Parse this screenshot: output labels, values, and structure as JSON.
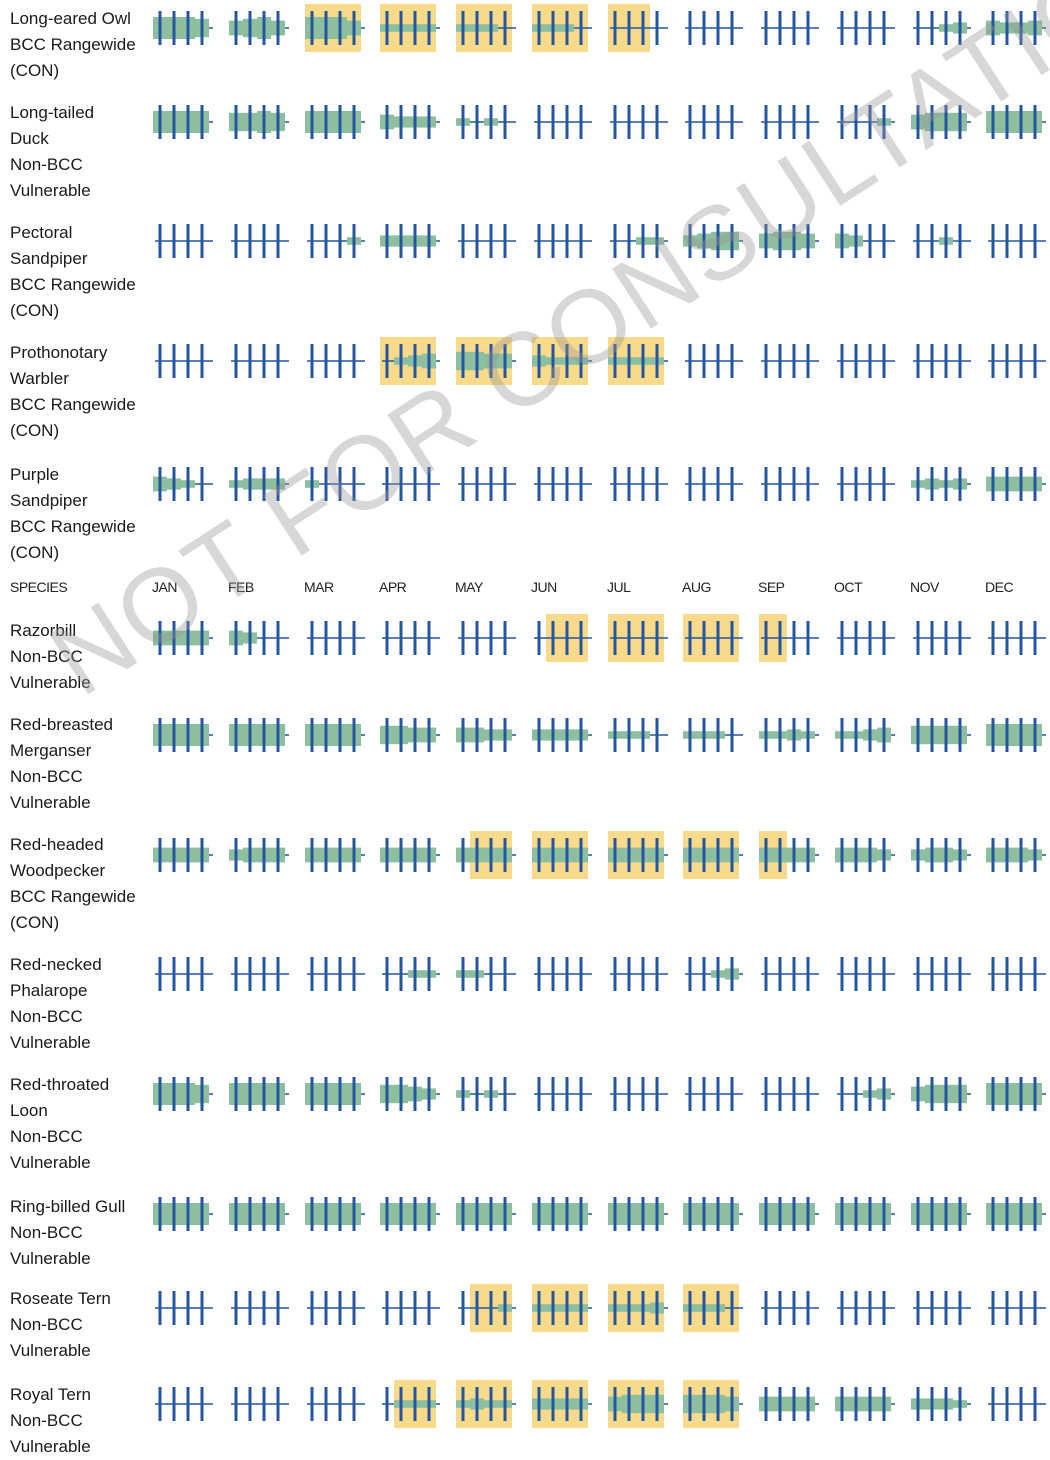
{
  "colors": {
    "breeding": "#f9da8a",
    "probability": "#8dbf9f",
    "survey": "#2456a0",
    "no_data": "#2456a0",
    "watermark": "#9a9a9a"
  },
  "header": {
    "species_label": "SPECIES",
    "months": [
      "JAN",
      "FEB",
      "MAR",
      "APR",
      "MAY",
      "JUN",
      "JUL",
      "AUG",
      "SEP",
      "OCT",
      "NOV",
      "DEC"
    ]
  },
  "watermark_text": "NOT FOR CONSULTATION",
  "chart_data": {
    "type": "heatmap",
    "description_note": "Weekly probability-of-presence bars; 4 weeks per month; breeding season highlighted",
    "species": [
      {
        "name_lines": [
          "Long-eared Owl",
          "BCC Rangewide",
          "(CON)"
        ],
        "prob": [
          5,
          5,
          5,
          4,
          3,
          4,
          5,
          3,
          5,
          5,
          5,
          3,
          1,
          1,
          1,
          1,
          1,
          1,
          1,
          0,
          1,
          1,
          1,
          0,
          0,
          0,
          0,
          0,
          0,
          0,
          0,
          0,
          0,
          0,
          0,
          0,
          0,
          0,
          0,
          0,
          0,
          0,
          1,
          2,
          3,
          2,
          2,
          3
        ],
        "breeding": [
          0,
          0,
          0,
          0,
          0,
          0,
          0,
          0,
          1,
          1,
          1,
          1,
          1,
          1,
          1,
          1,
          1,
          1,
          1,
          1,
          1,
          1,
          1,
          1,
          1,
          1,
          1,
          0,
          0,
          0,
          0,
          0,
          0,
          0,
          0,
          0,
          0,
          0,
          0,
          0,
          0,
          0,
          0,
          0,
          0,
          0,
          0,
          0
        ]
      },
      {
        "name_lines": [
          "Long-tailed",
          "Duck",
          "Non-BCC",
          "Vulnerable"
        ],
        "prob": [
          5,
          5,
          5,
          5,
          4,
          4,
          5,
          4,
          5,
          5,
          5,
          5,
          3,
          2,
          2,
          2,
          1,
          0,
          1,
          0,
          0,
          0,
          0,
          0,
          0,
          0,
          0,
          0,
          0,
          0,
          0,
          0,
          0,
          0,
          0,
          0,
          0,
          0,
          0,
          1,
          3,
          4,
          4,
          4,
          5,
          5,
          5,
          5
        ],
        "breeding": [
          0,
          0,
          0,
          0,
          0,
          0,
          0,
          0,
          0,
          0,
          0,
          0,
          0,
          0,
          0,
          0,
          0,
          0,
          0,
          0,
          0,
          0,
          0,
          0,
          0,
          0,
          0,
          0,
          0,
          0,
          0,
          0,
          0,
          0,
          0,
          0,
          0,
          0,
          0,
          0,
          0,
          0,
          0,
          0,
          0,
          0,
          0,
          0
        ]
      },
      {
        "name_lines": [
          "Pectoral",
          "Sandpiper",
          "BCC Rangewide",
          "(CON)"
        ],
        "prob": [
          0,
          0,
          0,
          0,
          0,
          0,
          0,
          0,
          0,
          0,
          0,
          1,
          2,
          2,
          2,
          2,
          0,
          0,
          0,
          0,
          0,
          0,
          0,
          0,
          0,
          0,
          1,
          1,
          2,
          3,
          4,
          4,
          3,
          4,
          4,
          3,
          3,
          2,
          0,
          0,
          0,
          0,
          1,
          0,
          0,
          0,
          0,
          0
        ],
        "breeding": [
          0,
          0,
          0,
          0,
          0,
          0,
          0,
          0,
          0,
          0,
          0,
          0,
          0,
          0,
          0,
          0,
          0,
          0,
          0,
          0,
          0,
          0,
          0,
          0,
          0,
          0,
          0,
          0,
          0,
          0,
          0,
          0,
          0,
          0,
          0,
          0,
          0,
          0,
          0,
          0,
          0,
          0,
          0,
          0,
          0,
          0,
          0,
          0
        ]
      },
      {
        "name_lines": [
          "Prothonotary",
          "Warbler",
          "BCC Rangewide",
          "(CON)"
        ],
        "prob": [
          0,
          0,
          0,
          0,
          0,
          0,
          0,
          0,
          0,
          0,
          0,
          0,
          0,
          1,
          2,
          3,
          4,
          4,
          3,
          3,
          2,
          1,
          1,
          1,
          1,
          1,
          1,
          1,
          0,
          0,
          0,
          0,
          0,
          0,
          0,
          0,
          0,
          0,
          0,
          0,
          0,
          0,
          0,
          0,
          0,
          0,
          0,
          0
        ],
        "breeding": [
          0,
          0,
          0,
          0,
          0,
          0,
          0,
          0,
          0,
          0,
          0,
          0,
          1,
          1,
          1,
          1,
          1,
          1,
          1,
          1,
          1,
          1,
          1,
          1,
          1,
          1,
          1,
          1,
          0,
          0,
          0,
          0,
          0,
          0,
          0,
          0,
          0,
          0,
          0,
          0,
          0,
          0,
          0,
          0,
          0,
          0,
          0,
          0
        ]
      },
      {
        "name_lines": [
          "Purple",
          "Sandpiper",
          "BCC Rangewide",
          "(CON)"
        ],
        "prob": [
          3,
          2,
          1,
          0,
          1,
          2,
          2,
          2,
          1,
          0,
          0,
          0,
          0,
          0,
          0,
          0,
          0,
          0,
          0,
          0,
          0,
          0,
          0,
          0,
          0,
          0,
          0,
          0,
          0,
          0,
          0,
          0,
          0,
          0,
          0,
          0,
          0,
          0,
          0,
          0,
          1,
          2,
          1,
          2,
          3,
          3,
          3,
          3
        ],
        "breeding": [
          0,
          0,
          0,
          0,
          0,
          0,
          0,
          0,
          0,
          0,
          0,
          0,
          0,
          0,
          0,
          0,
          0,
          0,
          0,
          0,
          0,
          0,
          0,
          0,
          0,
          0,
          0,
          0,
          0,
          0,
          0,
          0,
          0,
          0,
          0,
          0,
          0,
          0,
          0,
          0,
          0,
          0,
          0,
          0,
          0,
          0,
          0,
          0
        ]
      },
      {
        "name_lines": [
          "Razorbill",
          "Non-BCC",
          "Vulnerable"
        ],
        "prob": [
          3,
          3,
          3,
          3,
          3,
          2,
          0,
          0,
          0,
          0,
          0,
          0,
          0,
          0,
          0,
          0,
          0,
          0,
          0,
          0,
          0,
          0,
          0,
          0,
          0,
          0,
          0,
          0,
          0,
          0,
          0,
          0,
          0,
          0,
          0,
          0,
          0,
          0,
          0,
          0,
          0,
          0,
          0,
          0,
          0,
          0,
          0,
          0
        ],
        "breeding": [
          0,
          0,
          0,
          0,
          0,
          0,
          0,
          0,
          0,
          0,
          0,
          0,
          0,
          0,
          0,
          0,
          0,
          0,
          0,
          0,
          0,
          1,
          1,
          1,
          1,
          1,
          1,
          1,
          1,
          1,
          1,
          1,
          1,
          1,
          0,
          0,
          0,
          0,
          0,
          0,
          0,
          0,
          0,
          0,
          0,
          0,
          0,
          0
        ]
      },
      {
        "name_lines": [
          "Red-breasted",
          "Merganser",
          "Non-BCC",
          "Vulnerable"
        ],
        "prob": [
          5,
          5,
          5,
          5,
          5,
          5,
          5,
          5,
          5,
          5,
          5,
          5,
          4,
          4,
          3,
          3,
          3,
          3,
          2,
          2,
          2,
          2,
          2,
          2,
          1,
          1,
          1,
          0,
          1,
          1,
          1,
          0,
          1,
          1,
          2,
          1,
          1,
          1,
          2,
          3,
          4,
          4,
          4,
          4,
          5,
          5,
          5,
          5
        ],
        "breeding": [
          0,
          0,
          0,
          0,
          0,
          0,
          0,
          0,
          0,
          0,
          0,
          0,
          0,
          0,
          0,
          0,
          0,
          0,
          0,
          0,
          0,
          0,
          0,
          0,
          0,
          0,
          0,
          0,
          0,
          0,
          0,
          0,
          0,
          0,
          0,
          0,
          0,
          0,
          0,
          0,
          0,
          0,
          0,
          0,
          0,
          0,
          0,
          0
        ]
      },
      {
        "name_lines": [
          "Red-headed",
          "Woodpecker",
          "BCC Rangewide",
          "(CON)"
        ],
        "prob": [
          3,
          3,
          3,
          3,
          2,
          3,
          3,
          3,
          3,
          3,
          3,
          3,
          3,
          3,
          3,
          3,
          3,
          3,
          3,
          3,
          3,
          3,
          3,
          3,
          3,
          3,
          3,
          3,
          3,
          3,
          3,
          3,
          3,
          3,
          3,
          3,
          3,
          3,
          3,
          2,
          2,
          3,
          3,
          2,
          3,
          3,
          3,
          2
        ],
        "breeding": [
          0,
          0,
          0,
          0,
          0,
          0,
          0,
          0,
          0,
          0,
          0,
          0,
          0,
          0,
          0,
          0,
          0,
          1,
          1,
          1,
          1,
          1,
          1,
          1,
          1,
          1,
          1,
          1,
          1,
          1,
          1,
          1,
          1,
          1,
          0,
          0,
          0,
          0,
          0,
          0,
          0,
          0,
          0,
          0,
          0,
          0,
          0,
          0
        ]
      },
      {
        "name_lines": [
          "Red-necked",
          "Phalarope",
          "Non-BCC",
          "Vulnerable"
        ],
        "prob": [
          0,
          0,
          0,
          0,
          0,
          0,
          0,
          0,
          0,
          0,
          0,
          0,
          0,
          0,
          1,
          1,
          1,
          1,
          0,
          0,
          0,
          0,
          0,
          0,
          0,
          0,
          0,
          0,
          0,
          0,
          1,
          2,
          0,
          0,
          0,
          0,
          0,
          0,
          0,
          0,
          0,
          0,
          0,
          0,
          0,
          0,
          0,
          0
        ],
        "breeding": [
          0,
          0,
          0,
          0,
          0,
          0,
          0,
          0,
          0,
          0,
          0,
          0,
          0,
          0,
          0,
          0,
          0,
          0,
          0,
          0,
          0,
          0,
          0,
          0,
          0,
          0,
          0,
          0,
          0,
          0,
          0,
          0,
          0,
          0,
          0,
          0,
          0,
          0,
          0,
          0,
          0,
          0,
          0,
          0,
          0,
          0,
          0,
          0
        ]
      },
      {
        "name_lines": [
          "Red-throated",
          "Loon",
          "Non-BCC",
          "Vulnerable"
        ],
        "prob": [
          5,
          5,
          5,
          4,
          5,
          5,
          5,
          5,
          5,
          5,
          5,
          5,
          4,
          4,
          3,
          2,
          1,
          0,
          1,
          0,
          0,
          0,
          0,
          0,
          0,
          0,
          0,
          0,
          0,
          0,
          0,
          0,
          0,
          0,
          0,
          0,
          0,
          0,
          1,
          2,
          3,
          4,
          4,
          4,
          5,
          5,
          5,
          5
        ],
        "breeding": [
          0,
          0,
          0,
          0,
          0,
          0,
          0,
          0,
          0,
          0,
          0,
          0,
          0,
          0,
          0,
          0,
          0,
          0,
          0,
          0,
          0,
          0,
          0,
          0,
          0,
          0,
          0,
          0,
          0,
          0,
          0,
          0,
          0,
          0,
          0,
          0,
          0,
          0,
          0,
          0,
          0,
          0,
          0,
          0,
          0,
          0,
          0,
          0
        ]
      },
      {
        "name_lines": [
          "Ring-billed Gull",
          "Non-BCC",
          "Vulnerable"
        ],
        "prob": [
          5,
          5,
          5,
          5,
          5,
          5,
          5,
          5,
          5,
          5,
          5,
          5,
          5,
          5,
          5,
          5,
          5,
          5,
          5,
          5,
          5,
          5,
          5,
          5,
          5,
          5,
          5,
          5,
          5,
          5,
          5,
          5,
          5,
          5,
          5,
          5,
          5,
          5,
          5,
          5,
          5,
          5,
          5,
          5,
          5,
          5,
          5,
          5
        ],
        "breeding": [
          0,
          0,
          0,
          0,
          0,
          0,
          0,
          0,
          0,
          0,
          0,
          0,
          0,
          0,
          0,
          0,
          0,
          0,
          0,
          0,
          0,
          0,
          0,
          0,
          0,
          0,
          0,
          0,
          0,
          0,
          0,
          0,
          0,
          0,
          0,
          0,
          0,
          0,
          0,
          0,
          0,
          0,
          0,
          0,
          0,
          0,
          0,
          0
        ]
      },
      {
        "name_lines": [
          "Roseate Tern",
          "Non-BCC",
          "Vulnerable"
        ],
        "prob": [
          0,
          0,
          0,
          0,
          0,
          0,
          0,
          0,
          0,
          0,
          0,
          0,
          0,
          0,
          0,
          0,
          0,
          0,
          0,
          1,
          1,
          1,
          1,
          1,
          1,
          1,
          1,
          2,
          1,
          1,
          1,
          0,
          0,
          0,
          0,
          0,
          0,
          0,
          0,
          0,
          0,
          0,
          0,
          0,
          0,
          0,
          0,
          0
        ],
        "breeding": [
          0,
          0,
          0,
          0,
          0,
          0,
          0,
          0,
          0,
          0,
          0,
          0,
          0,
          0,
          0,
          0,
          0,
          1,
          1,
          1,
          1,
          1,
          1,
          1,
          1,
          1,
          1,
          1,
          1,
          1,
          1,
          1,
          0,
          0,
          0,
          0,
          0,
          0,
          0,
          0,
          0,
          0,
          0,
          0,
          0,
          0,
          0,
          0
        ]
      },
      {
        "name_lines": [
          "Royal Tern",
          "Non-BCC",
          "Vulnerable"
        ],
        "prob": [
          0,
          0,
          0,
          0,
          0,
          0,
          0,
          0,
          0,
          0,
          0,
          0,
          0,
          1,
          1,
          1,
          1,
          2,
          1,
          1,
          2,
          2,
          2,
          2,
          3,
          4,
          4,
          4,
          4,
          4,
          4,
          3,
          3,
          3,
          3,
          3,
          3,
          3,
          3,
          3,
          2,
          2,
          2,
          1,
          0,
          0,
          0,
          0
        ],
        "breeding": [
          0,
          0,
          0,
          0,
          0,
          0,
          0,
          0,
          0,
          0,
          0,
          0,
          0,
          1,
          1,
          1,
          1,
          1,
          1,
          1,
          1,
          1,
          1,
          1,
          1,
          1,
          1,
          1,
          1,
          1,
          1,
          1,
          0,
          0,
          0,
          0,
          0,
          0,
          0,
          0,
          0,
          0,
          0,
          0,
          0,
          0,
          0,
          0
        ]
      }
    ]
  }
}
